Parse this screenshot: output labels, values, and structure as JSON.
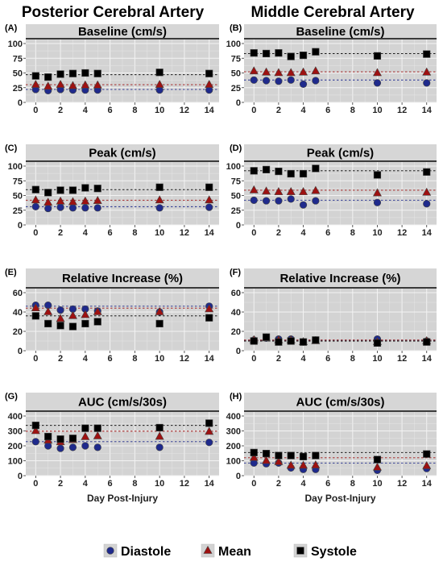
{
  "column_titles": [
    "Posterior Cerebral Artery",
    "Middle Cerebral Artery"
  ],
  "xlabel": "Day Post-Injury",
  "legend": [
    {
      "name": "Diastole",
      "color": "#1f2a8c",
      "marker": "circle"
    },
    {
      "name": "Mean",
      "color": "#9e1111",
      "marker": "triangle"
    },
    {
      "name": "Systole",
      "color": "#000000",
      "marker": "square"
    }
  ],
  "chart_data": [
    {
      "label": "(A)",
      "title": "Baseline (cm/s)",
      "type": "scatter",
      "x": [
        0,
        1,
        2,
        3,
        4,
        5,
        10,
        14
      ],
      "yticks": [
        0,
        25,
        50,
        75,
        100
      ],
      "ylim": [
        0,
        100
      ],
      "xticks": [
        0,
        2,
        4,
        6,
        8,
        10,
        12,
        14
      ],
      "xlim": [
        -0.8,
        14.8
      ],
      "grid": true,
      "series": [
        {
          "name": "Diastole",
          "values": [
            22,
            20,
            22,
            21,
            21,
            21,
            21,
            21
          ],
          "mean_line": 22
        },
        {
          "name": "Mean",
          "values": [
            30,
            27,
            30,
            28,
            29,
            29,
            30,
            30
          ],
          "mean_line": 30
        },
        {
          "name": "Systole",
          "values": [
            45,
            43,
            48,
            49,
            50,
            49,
            51,
            49
          ],
          "mean_line": 47
        }
      ]
    },
    {
      "label": "(B)",
      "title": "Baseline (cm/s)",
      "type": "scatter",
      "x": [
        0,
        1,
        2,
        3,
        4,
        5,
        10,
        14
      ],
      "yticks": [
        0,
        25,
        50,
        75,
        100
      ],
      "ylim": [
        0,
        100
      ],
      "xticks": [
        0,
        2,
        4,
        6,
        8,
        10,
        12,
        14
      ],
      "xlim": [
        -0.8,
        14.8
      ],
      "grid": true,
      "series": [
        {
          "name": "Diastole",
          "values": [
            38,
            37,
            36,
            38,
            31,
            37,
            33,
            33
          ],
          "mean_line": 38
        },
        {
          "name": "Mean",
          "values": [
            53,
            51,
            50,
            50,
            51,
            53,
            50,
            51
          ],
          "mean_line": 52
        },
        {
          "name": "Systole",
          "values": [
            84,
            83,
            84,
            78,
            80,
            86,
            79,
            82
          ],
          "mean_line": 83
        }
      ]
    },
    {
      "label": "(C)",
      "title": "Peak (cm/s)",
      "type": "scatter",
      "x": [
        0,
        1,
        2,
        3,
        4,
        5,
        10,
        14
      ],
      "yticks": [
        0,
        25,
        50,
        75,
        100
      ],
      "ylim": [
        0,
        100
      ],
      "xticks": [
        0,
        2,
        4,
        6,
        8,
        10,
        12,
        14
      ],
      "xlim": [
        -0.8,
        14.8
      ],
      "grid": true,
      "series": [
        {
          "name": "Diastole",
          "values": [
            31,
            28,
            30,
            29,
            29,
            29,
            29,
            30
          ],
          "mean_line": 31
        },
        {
          "name": "Mean",
          "values": [
            42,
            38,
            40,
            39,
            40,
            41,
            42,
            42
          ],
          "mean_line": 42
        },
        {
          "name": "Systole",
          "values": [
            60,
            55,
            59,
            59,
            63,
            62,
            64,
            64
          ],
          "mean_line": 60
        }
      ]
    },
    {
      "label": "(D)",
      "title": "Peak (cm/s)",
      "type": "scatter",
      "x": [
        0,
        1,
        2,
        3,
        4,
        5,
        10,
        14
      ],
      "yticks": [
        0,
        25,
        50,
        75,
        100
      ],
      "ylim": [
        0,
        100
      ],
      "xticks": [
        0,
        2,
        4,
        6,
        8,
        10,
        12,
        14
      ],
      "xlim": [
        -0.8,
        14.8
      ],
      "grid": true,
      "series": [
        {
          "name": "Diastole",
          "values": [
            42,
            41,
            41,
            44,
            34,
            41,
            38,
            36
          ],
          "mean_line": 42
        },
        {
          "name": "Mean",
          "values": [
            59,
            57,
            56,
            56,
            56,
            58,
            54,
            55
          ],
          "mean_line": 59
        },
        {
          "name": "Systole",
          "values": [
            92,
            94,
            91,
            87,
            87,
            96,
            85,
            90
          ],
          "mean_line": 92
        }
      ]
    },
    {
      "label": "(E)",
      "title": "Relative Increase (%)",
      "type": "scatter",
      "x": [
        0,
        1,
        2,
        3,
        4,
        5,
        10,
        14
      ],
      "yticks": [
        0,
        20,
        40,
        60
      ],
      "ylim": [
        0,
        60
      ],
      "xticks": [
        0,
        2,
        4,
        6,
        8,
        10,
        12,
        14
      ],
      "xlim": [
        -0.8,
        14.8
      ],
      "grid": true,
      "series": [
        {
          "name": "Diastole",
          "values": [
            47,
            47,
            42,
            43,
            43,
            41,
            40,
            46
          ],
          "mean_line": 46
        },
        {
          "name": "Mean",
          "values": [
            44,
            40,
            33,
            36,
            37,
            40,
            40,
            43
          ],
          "mean_line": 44
        },
        {
          "name": "Systole",
          "values": [
            36,
            28,
            26,
            25,
            28,
            30,
            28,
            34
          ],
          "mean_line": 36
        }
      ]
    },
    {
      "label": "(F)",
      "title": "Relative Increase (%)",
      "type": "scatter",
      "x": [
        0,
        1,
        2,
        3,
        4,
        5,
        10,
        14
      ],
      "yticks": [
        0,
        20,
        40,
        60
      ],
      "ylim": [
        0,
        60
      ],
      "xticks": [
        0,
        2,
        4,
        6,
        8,
        10,
        12,
        14
      ],
      "xlim": [
        -0.8,
        14.8
      ],
      "grid": true,
      "series": [
        {
          "name": "Diastole",
          "values": [
            11,
            13,
            12,
            12,
            9,
            11,
            12,
            10
          ],
          "mean_line": 11
        },
        {
          "name": "Mean",
          "values": [
            11,
            13,
            11,
            11,
            9,
            10,
            9,
            10
          ],
          "mean_line": 11
        },
        {
          "name": "Systole",
          "values": [
            10,
            14,
            9,
            10,
            9,
            11,
            8,
            9
          ],
          "mean_line": 10
        }
      ]
    },
    {
      "label": "(G)",
      "title": "AUC (cm/s/30s)",
      "type": "scatter",
      "x": [
        0,
        1,
        2,
        3,
        4,
        5,
        10,
        14
      ],
      "yticks": [
        0,
        100,
        200,
        300,
        400
      ],
      "ylim": [
        0,
        400
      ],
      "xticks": [
        0,
        2,
        4,
        6,
        8,
        10,
        12,
        14
      ],
      "xlim": [
        -0.8,
        14.8
      ],
      "grid": true,
      "series": [
        {
          "name": "Diastole",
          "values": [
            228,
            200,
            183,
            190,
            200,
            190,
            190,
            223
          ],
          "mean_line": 228
        },
        {
          "name": "Mean",
          "values": [
            300,
            236,
            225,
            240,
            260,
            265,
            262,
            295
          ],
          "mean_line": 298
        },
        {
          "name": "Systole",
          "values": [
            337,
            262,
            245,
            250,
            318,
            318,
            322,
            352
          ],
          "mean_line": 337
        }
      ]
    },
    {
      "label": "(H)",
      "title": "AUC (cm/s/30s)",
      "type": "scatter",
      "x": [
        0,
        1,
        2,
        3,
        4,
        5,
        10,
        14
      ],
      "yticks": [
        0,
        100,
        200,
        300,
        400
      ],
      "ylim": [
        0,
        400
      ],
      "xticks": [
        0,
        2,
        4,
        6,
        8,
        10,
        12,
        14
      ],
      "xlim": [
        -0.8,
        14.8
      ],
      "grid": true,
      "series": [
        {
          "name": "Diastole",
          "values": [
            85,
            80,
            85,
            52,
            42,
            42,
            36,
            48
          ],
          "mean_line": 85
        },
        {
          "name": "Mean",
          "values": [
            120,
            100,
            92,
            68,
            68,
            70,
            55,
            65
          ],
          "mean_line": 120
        },
        {
          "name": "Systole",
          "values": [
            155,
            148,
            135,
            135,
            128,
            135,
            108,
            145
          ],
          "mean_line": 155
        }
      ]
    }
  ]
}
